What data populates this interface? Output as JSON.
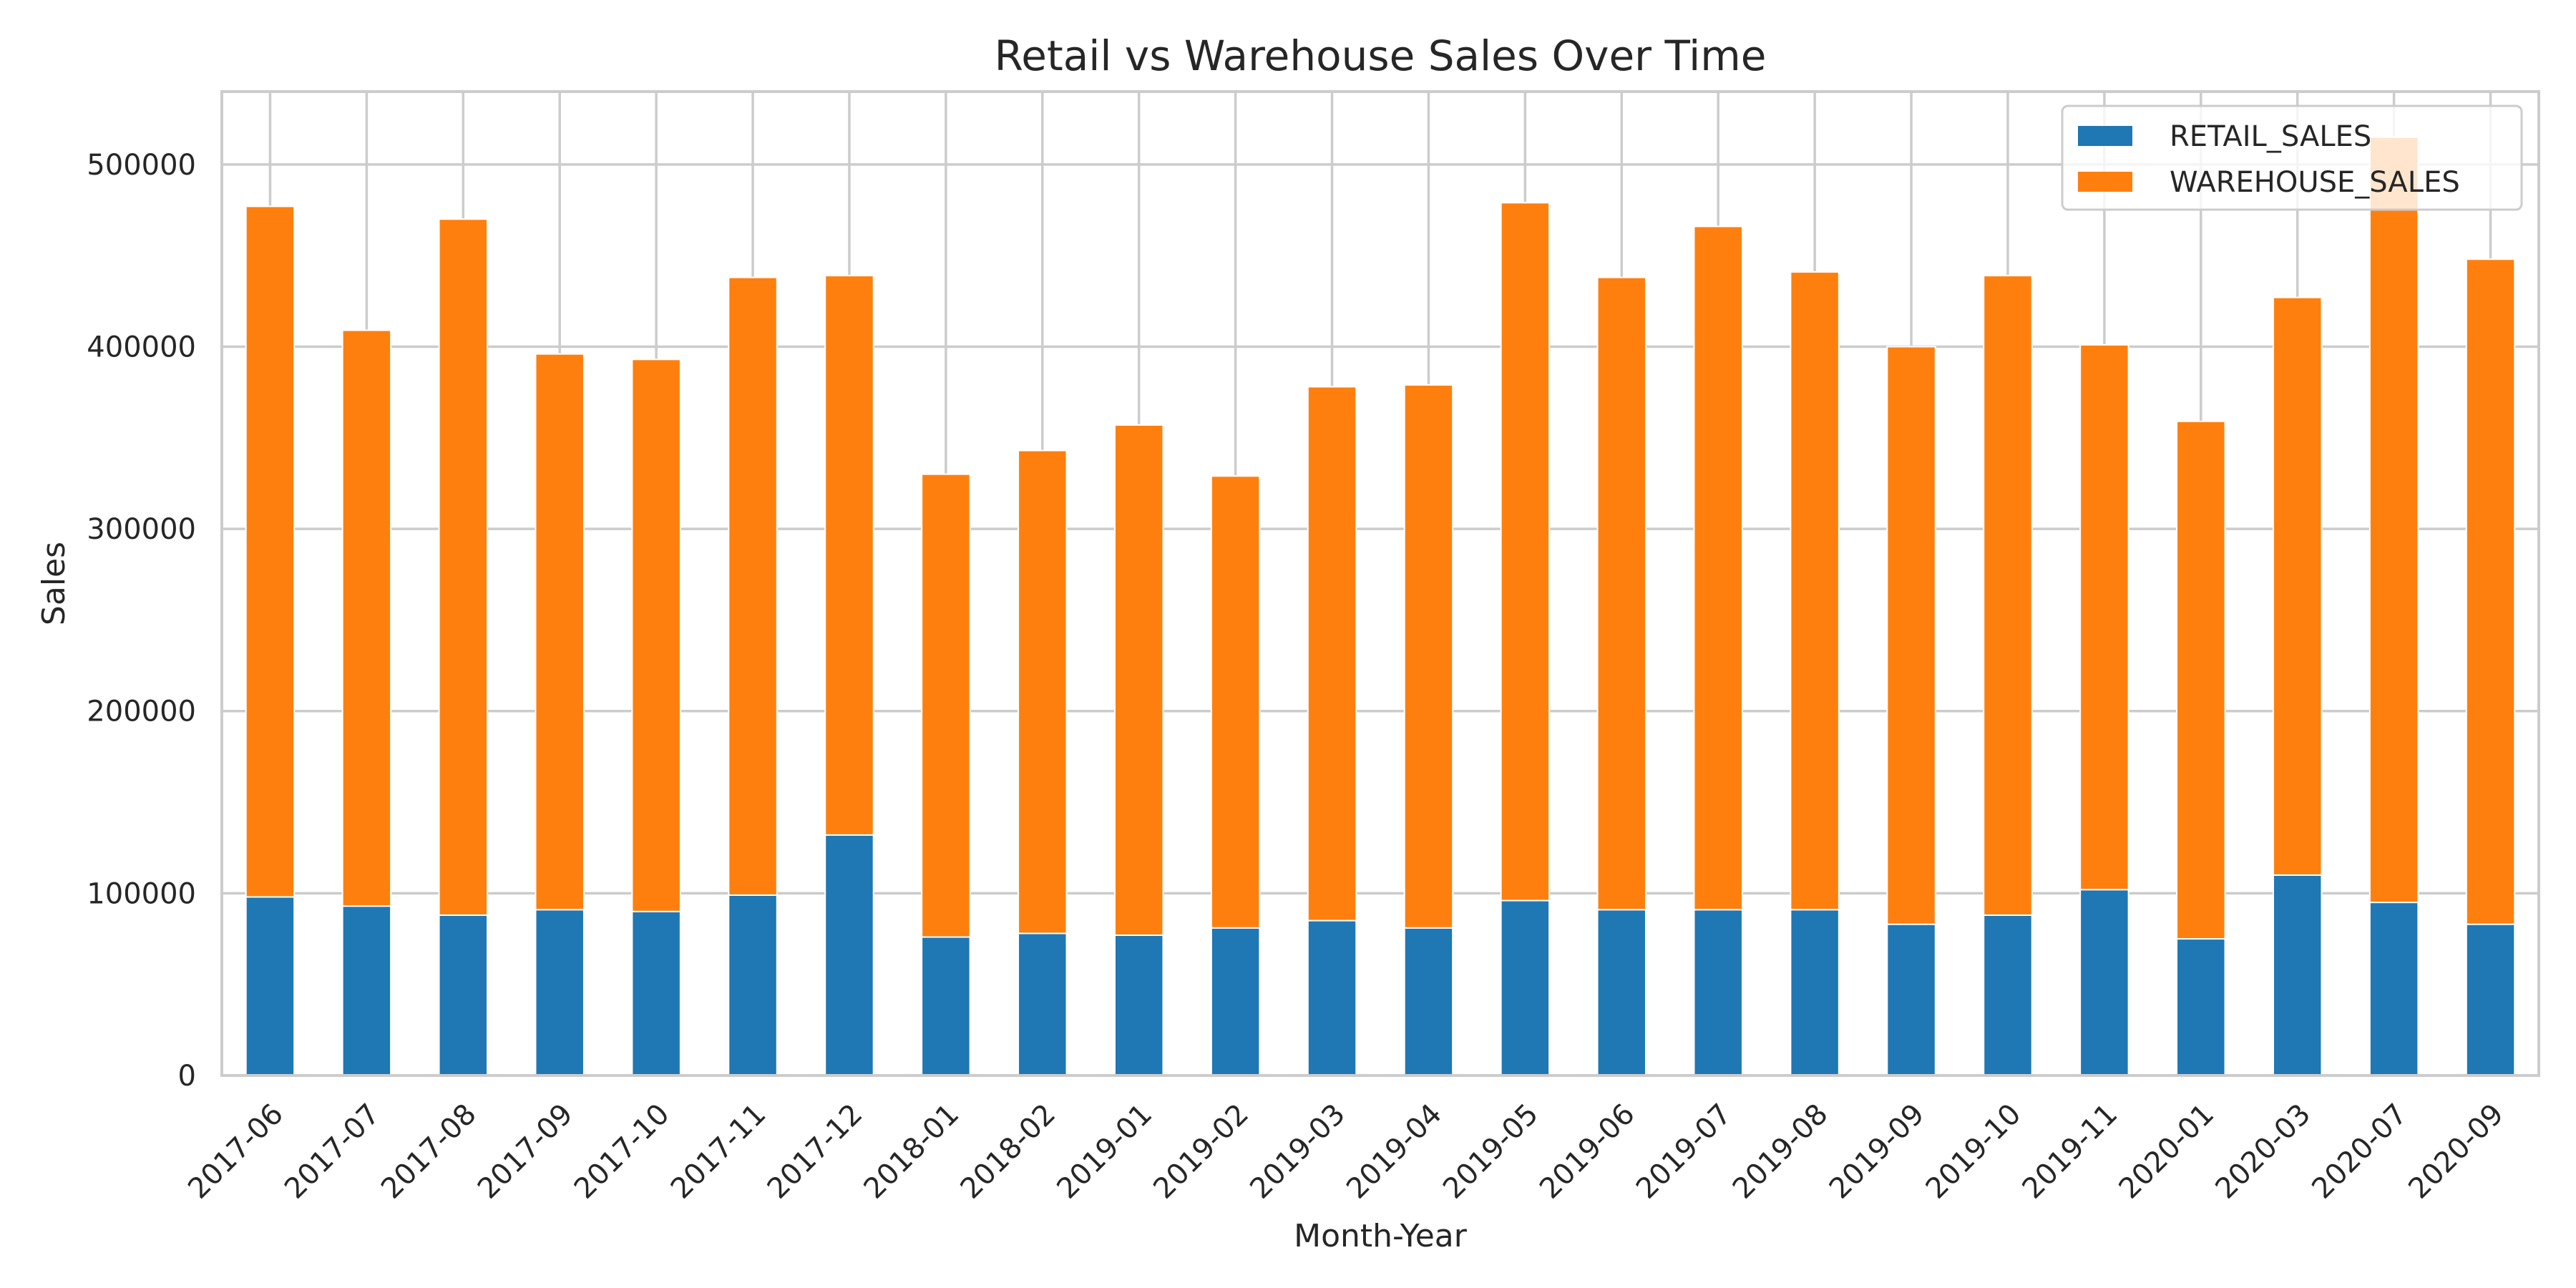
{
  "chart_data": {
    "type": "bar",
    "stacked": true,
    "title": "Retail vs Warehouse Sales Over Time",
    "xlabel": "Month-Year",
    "ylabel": "Sales",
    "ylim": [
      0,
      540000
    ],
    "yticks": [
      0,
      100000,
      200000,
      300000,
      400000,
      500000
    ],
    "grid": true,
    "legend_position": "top-right",
    "categories": [
      "2017-06",
      "2017-07",
      "2017-08",
      "2017-09",
      "2017-10",
      "2017-11",
      "2017-12",
      "2018-01",
      "2018-02",
      "2019-01",
      "2019-02",
      "2019-03",
      "2019-04",
      "2019-05",
      "2019-06",
      "2019-07",
      "2019-08",
      "2019-09",
      "2019-10",
      "2019-11",
      "2020-01",
      "2020-03",
      "2020-07",
      "2020-09"
    ],
    "series": [
      {
        "name": "RETAIL_SALES",
        "color": "#1f77b4",
        "values": [
          98000,
          93000,
          88000,
          91000,
          90000,
          99000,
          132000,
          76000,
          78000,
          77000,
          81000,
          85000,
          81000,
          96000,
          91000,
          91000,
          91000,
          83000,
          88000,
          102000,
          75000,
          110000,
          95000,
          83000
        ]
      },
      {
        "name": "WAREHOUSE_SALES",
        "color": "#ff7f0e",
        "values": [
          379000,
          316000,
          382000,
          305000,
          303000,
          339000,
          307000,
          254000,
          265000,
          280000,
          248000,
          293000,
          298000,
          383000,
          347000,
          375000,
          350000,
          317000,
          351000,
          299000,
          284000,
          317000,
          420000,
          365000
        ]
      }
    ]
  }
}
